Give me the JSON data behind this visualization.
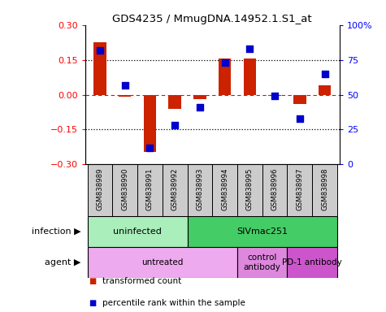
{
  "title": "GDS4235 / MmugDNA.14952.1.S1_at",
  "samples": [
    "GSM838989",
    "GSM838990",
    "GSM838991",
    "GSM838992",
    "GSM838993",
    "GSM838994",
    "GSM838995",
    "GSM838996",
    "GSM838997",
    "GSM838998"
  ],
  "transformed_count": [
    0.225,
    -0.01,
    -0.245,
    -0.06,
    -0.02,
    0.155,
    0.155,
    -0.005,
    -0.04,
    0.04
  ],
  "percentile_rank": [
    82,
    57,
    12,
    28,
    41,
    73,
    83,
    49,
    33,
    65
  ],
  "ylim_left": [
    -0.3,
    0.3
  ],
  "ylim_right": [
    0,
    100
  ],
  "yticks_left": [
    -0.3,
    -0.15,
    0,
    0.15,
    0.3
  ],
  "yticks_right": [
    0,
    25,
    50,
    75,
    100
  ],
  "yticklabels_right": [
    "0",
    "25",
    "50",
    "75",
    "100%"
  ],
  "hlines_dotted": [
    -0.15,
    0.15
  ],
  "hline_dashed": 0.0,
  "bar_color": "#cc2200",
  "dot_color": "#0000cc",
  "bar_width": 0.5,
  "dot_size": 30,
  "sample_box_color": "#cccccc",
  "infection_groups": [
    {
      "label": "uninfected",
      "start": 0,
      "end": 3,
      "color": "#aaeebb"
    },
    {
      "label": "SIVmac251",
      "start": 4,
      "end": 9,
      "color": "#44cc66"
    }
  ],
  "agent_groups": [
    {
      "label": "untreated",
      "start": 0,
      "end": 5,
      "color": "#eeaaee"
    },
    {
      "label": "control\nantibody",
      "start": 6,
      "end": 7,
      "color": "#dd88dd"
    },
    {
      "label": "PD-1 antibody",
      "start": 8,
      "end": 9,
      "color": "#cc55cc"
    }
  ],
  "legend_items": [
    {
      "label": "transformed count",
      "color": "#cc2200"
    },
    {
      "label": "percentile rank within the sample",
      "color": "#0000cc"
    }
  ],
  "infection_label": "infection",
  "agent_label": "agent"
}
